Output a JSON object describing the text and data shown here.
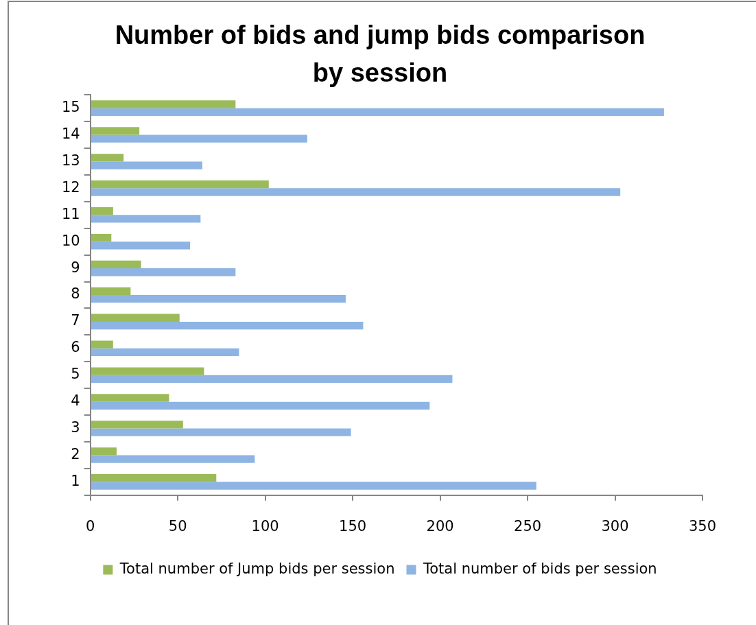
{
  "chart_data": {
    "type": "bar",
    "orientation": "horizontal",
    "title": "Number of bids and jump bids comparison by session",
    "categories": [
      "15",
      "14",
      "13",
      "12",
      "11",
      "10",
      "9",
      "8",
      "7",
      "6",
      "5",
      "4",
      "3",
      "2",
      "1"
    ],
    "series": [
      {
        "name": "Total number of Jump bids per session",
        "color": "#9bbb59",
        "values": [
          83,
          28,
          19,
          102,
          13,
          12,
          29,
          23,
          51,
          13,
          65,
          45,
          53,
          15,
          72
        ]
      },
      {
        "name": "Total number of bids per session",
        "color": "#8eb4e3",
        "values": [
          328,
          124,
          64,
          303,
          63,
          57,
          83,
          146,
          156,
          85,
          207,
          194,
          149,
          94,
          255
        ]
      }
    ],
    "xlim": [
      0,
      350
    ],
    "xticks": [
      0,
      50,
      100,
      150,
      200,
      250,
      300,
      350
    ],
    "grid": false,
    "legend": "bottom"
  }
}
